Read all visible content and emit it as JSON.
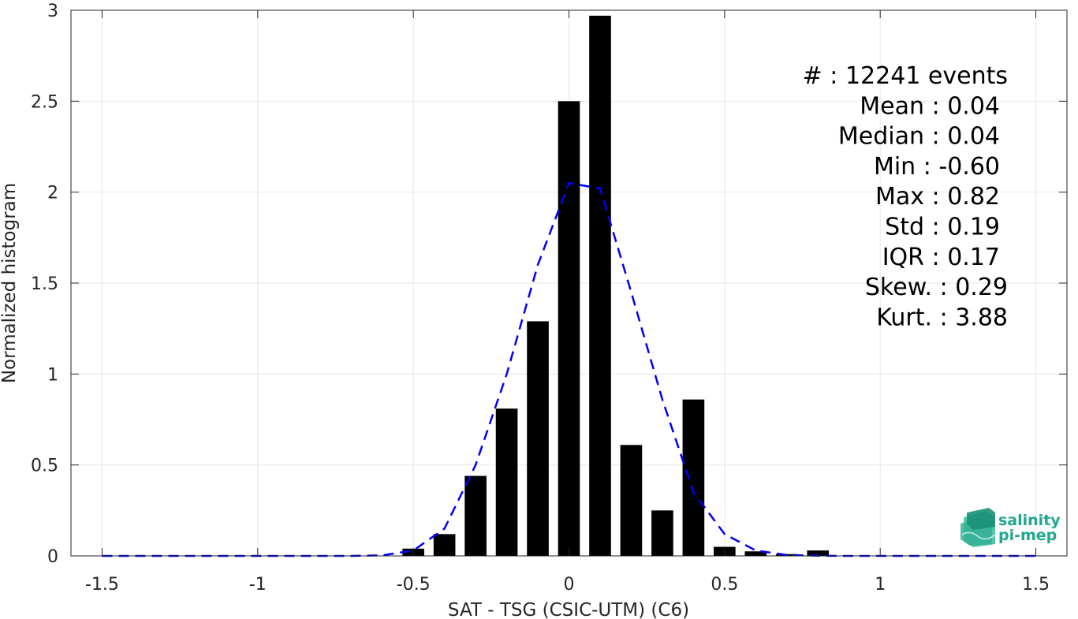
{
  "chart_data": {
    "type": "bar",
    "xlabel": "SAT - TSG (CSIC-UTM) (C6)",
    "ylabel": "Normalized histogram",
    "xlim": [
      -1.6,
      1.6
    ],
    "ylim": [
      0,
      3
    ],
    "xticks": [
      -1.5,
      -1,
      -0.5,
      0,
      0.5,
      1,
      1.5
    ],
    "xtick_labels": [
      "-1.5",
      "-1",
      "-0.5",
      "0",
      "0.5",
      "1",
      "1.5"
    ],
    "yticks": [
      0,
      0.5,
      1,
      1.5,
      2,
      2.5,
      3
    ],
    "ytick_labels": [
      "0",
      "0.5",
      "1",
      "1.5",
      "2",
      "2.5",
      "3"
    ],
    "grid": true,
    "bar_width": 0.07,
    "bar_color": "#000000",
    "bars": {
      "x": [
        -0.5,
        -0.4,
        -0.3,
        -0.2,
        -0.1,
        0.0,
        0.1,
        0.2,
        0.3,
        0.4,
        0.5,
        0.6,
        0.7,
        0.8
      ],
      "values": [
        0.04,
        0.12,
        0.44,
        0.81,
        1.29,
        2.5,
        2.97,
        0.61,
        0.25,
        0.86,
        0.05,
        0.025,
        0.01,
        0.03
      ]
    },
    "fit_curve": {
      "style": "dashed",
      "color": "#0000ff",
      "x": [
        -1.5,
        -1.4,
        -1.3,
        -1.2,
        -1.1,
        -1.0,
        -0.9,
        -0.8,
        -0.7,
        -0.6,
        -0.5,
        -0.4,
        -0.3,
        -0.2,
        -0.1,
        0.0,
        0.1,
        0.2,
        0.3,
        0.4,
        0.5,
        0.6,
        0.7,
        0.8,
        0.9,
        1.0,
        1.1,
        1.2,
        1.3,
        1.4,
        1.5
      ],
      "y": [
        0,
        0,
        0,
        0,
        0,
        0,
        0,
        0,
        0,
        0.003,
        0.03,
        0.15,
        0.5,
        1.0,
        1.6,
        2.05,
        2.02,
        1.45,
        0.86,
        0.35,
        0.12,
        0.03,
        0.005,
        0.001,
        0,
        0,
        0,
        0,
        0,
        0,
        0
      ]
    },
    "stats": [
      {
        "label": "#  : 12241 events"
      },
      {
        "label": "Mean : 0.04"
      },
      {
        "label": "Median : 0.04"
      },
      {
        "label": "Min : -0.60"
      },
      {
        "label": "Max : 0.82"
      },
      {
        "label": "Std : 0.19"
      },
      {
        "label": "IQR : 0.17"
      },
      {
        "label": "Skew. : 0.29"
      },
      {
        "label": "Kurt. : 3.88"
      }
    ]
  },
  "logo": {
    "line1": "salinity",
    "line2": "pi-mep",
    "color": "#1fa88f",
    "icon": "salinity-wave-icon"
  }
}
